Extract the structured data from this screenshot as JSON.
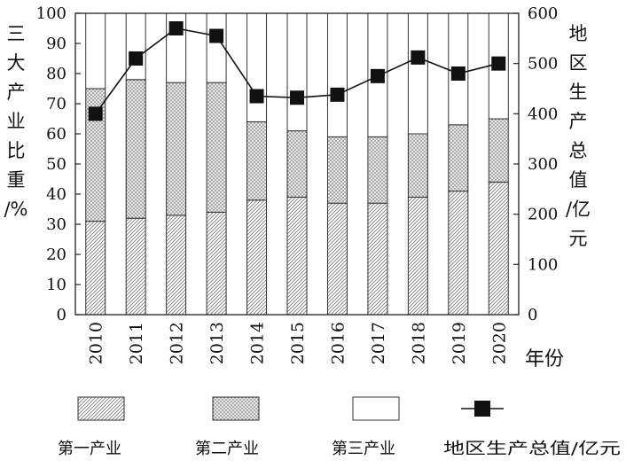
{
  "chart_data": {
    "type": "bar",
    "stacked": true,
    "categories": [
      "2010",
      "2011",
      "2012",
      "2013",
      "2014",
      "2015",
      "2016",
      "2017",
      "2018",
      "2019",
      "2020"
    ],
    "series": [
      {
        "name": "第一产业",
        "pattern": "diagonal-hatch",
        "values": [
          31,
          32,
          33,
          34,
          38,
          39,
          37,
          37,
          39,
          41,
          44
        ]
      },
      {
        "name": "第二产业",
        "pattern": "dotted",
        "values": [
          44,
          46,
          44,
          43,
          26,
          22,
          22,
          22,
          21,
          22,
          21
        ]
      },
      {
        "name": "第三产业",
        "pattern": "blank",
        "values": [
          25,
          22,
          23,
          23,
          36,
          39,
          41,
          41,
          40,
          37,
          35
        ]
      }
    ],
    "line_series": {
      "name": "地区生产总值/亿元",
      "axis": "right",
      "marker": "filled-square",
      "values": [
        400,
        510,
        570,
        555,
        435,
        432,
        438,
        475,
        512,
        480,
        500
      ]
    },
    "yleft": {
      "label": "三大产业比重/%",
      "ticks": [
        "0",
        "10",
        "20",
        "30",
        "40",
        "50",
        "60",
        "70",
        "80",
        "90",
        "100"
      ],
      "ylim": [
        0,
        100
      ]
    },
    "yright": {
      "label": "地区生产总值/亿元",
      "ticks": [
        "0",
        "100",
        "200",
        "300",
        "400",
        "500",
        "600"
      ],
      "ylim": [
        0,
        600
      ]
    },
    "xlabel": "年份",
    "grid": false,
    "legend_position": "bottom"
  }
}
